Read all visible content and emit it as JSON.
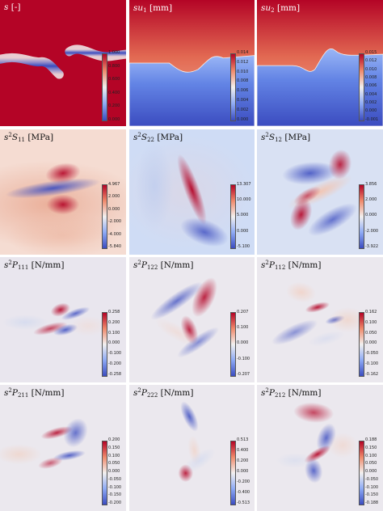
{
  "cmap": {
    "blue": "#3b4cc0",
    "white": "#f2f0ef",
    "red": "#b40426"
  },
  "panels": [
    {
      "row": 0,
      "col": 0,
      "kind": "s",
      "label": {
        "sup": "",
        "sym": "s",
        "sub": "",
        "unit": "[-]"
      },
      "ticks": [
        "1.000",
        "0.800",
        "0.600",
        "0.400",
        "0.200",
        "0.000"
      ]
    },
    {
      "row": 0,
      "col": 1,
      "kind": "u1",
      "label": {
        "sup": "",
        "sym": "u",
        "sub": "1",
        "unit": "[mm]"
      },
      "ticks": [
        "0.014",
        "0.012",
        "0.010",
        "0.008",
        "0.006",
        "0.004",
        "0.002",
        "0.000"
      ]
    },
    {
      "row": 0,
      "col": 2,
      "kind": "u2",
      "label": {
        "sup": "",
        "sym": "u",
        "sub": "2",
        "unit": "[mm]"
      },
      "ticks": [
        "0.015",
        "0.012",
        "0.010",
        "0.008",
        "0.006",
        "0.004",
        "0.002",
        "0.000",
        "-0.001"
      ]
    },
    {
      "row": 1,
      "col": 0,
      "kind": "s11",
      "label": {
        "sup": "2",
        "sym": "S",
        "sub": "11",
        "unit": "[MPa]"
      },
      "ticks": [
        "4.967",
        "2.000",
        "0.000",
        "-2.000",
        "-4.000",
        "-5.840"
      ]
    },
    {
      "row": 1,
      "col": 1,
      "kind": "s22",
      "label": {
        "sup": "2",
        "sym": "S",
        "sub": "22",
        "unit": "[MPa]"
      },
      "ticks": [
        "13.307",
        "10.000",
        "5.000",
        "0.000",
        "-5.100"
      ]
    },
    {
      "row": 1,
      "col": 2,
      "kind": "s12",
      "label": {
        "sup": "2",
        "sym": "S",
        "sub": "12",
        "unit": "[MPa]"
      },
      "ticks": [
        "3.856",
        "2.000",
        "0.000",
        "-2.000",
        "-3.922"
      ]
    },
    {
      "row": 2,
      "col": 0,
      "kind": "p111",
      "label": {
        "sup": "2",
        "sym": "P",
        "sub": "111",
        "unit": "[N/mm]"
      },
      "ticks": [
        "0.258",
        "0.200",
        "0.100",
        "0.000",
        "-0.100",
        "-0.200",
        "-0.258"
      ]
    },
    {
      "row": 2,
      "col": 1,
      "kind": "p122",
      "label": {
        "sup": "2",
        "sym": "P",
        "sub": "122",
        "unit": "[N/mm]"
      },
      "ticks": [
        "0.207",
        "0.100",
        "0.000",
        "-0.100",
        "-0.207"
      ]
    },
    {
      "row": 2,
      "col": 2,
      "kind": "p112",
      "label": {
        "sup": "2",
        "sym": "P",
        "sub": "112",
        "unit": "[N/mm]"
      },
      "ticks": [
        "0.162",
        "0.100",
        "0.050",
        "0.000",
        "-0.050",
        "-0.100",
        "-0.162"
      ]
    },
    {
      "row": 3,
      "col": 0,
      "kind": "p211",
      "label": {
        "sup": "2",
        "sym": "P",
        "sub": "211",
        "unit": "[N/mm]"
      },
      "ticks": [
        "0.200",
        "0.150",
        "0.100",
        "0.050",
        "0.000",
        "-0.050",
        "-0.100",
        "-0.150",
        "-0.200"
      ]
    },
    {
      "row": 3,
      "col": 1,
      "kind": "p222",
      "label": {
        "sup": "2",
        "sym": "P",
        "sub": "222",
        "unit": "[N/mm]"
      },
      "ticks": [
        "0.513",
        "0.400",
        "0.200",
        "0.000",
        "-0.200",
        "-0.400",
        "-0.513"
      ]
    },
    {
      "row": 3,
      "col": 2,
      "kind": "p212",
      "label": {
        "sup": "2",
        "sym": "P",
        "sub": "212",
        "unit": "[N/mm]"
      },
      "ticks": [
        "0.188",
        "0.150",
        "0.100",
        "0.050",
        "0.000",
        "-0.050",
        "-0.100",
        "-0.150",
        "-0.188"
      ]
    }
  ]
}
